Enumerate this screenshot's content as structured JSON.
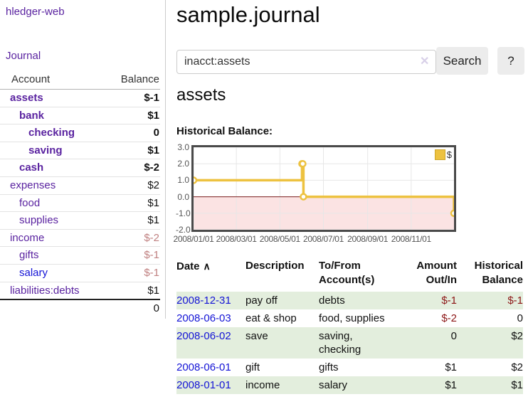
{
  "app": {
    "brand": "hledger-web",
    "nav_journal": "Journal"
  },
  "colors": {
    "link_purple": "#5a23a0",
    "link_blue": "#1414d6",
    "negative": "#8c1616",
    "negative_dim": "#c08181",
    "row_stripe_green": "#e3eedd",
    "button_gray": "#ececec",
    "chart_line_gold": "#EDC240",
    "chart_negative_region": "#fbe3e3",
    "chart_zero_line": "#7d1f1f",
    "chart_border": "#4a4a4a"
  },
  "sidebar": {
    "account_header": "Account",
    "balance_header": "Balance",
    "accounts": [
      {
        "name": "assets",
        "depth": 0,
        "balance": "$-1",
        "bold": true,
        "tone": "neg"
      },
      {
        "name": "bank",
        "depth": 1,
        "balance": "$1",
        "bold": true,
        "tone": "normal"
      },
      {
        "name": "checking",
        "depth": 2,
        "balance": "0",
        "bold": true,
        "tone": "normal"
      },
      {
        "name": "saving",
        "depth": 2,
        "balance": "$1",
        "bold": true,
        "tone": "normal"
      },
      {
        "name": "cash",
        "depth": 1,
        "balance": "$-2",
        "bold": true,
        "tone": "neg"
      },
      {
        "name": "expenses",
        "depth": 0,
        "balance": "$2",
        "bold": false,
        "tone": "normal"
      },
      {
        "name": "food",
        "depth": 1,
        "balance": "$1",
        "bold": false,
        "tone": "normal"
      },
      {
        "name": "supplies",
        "depth": 1,
        "balance": "$1",
        "bold": false,
        "tone": "normal"
      },
      {
        "name": "income",
        "depth": 0,
        "balance": "$-2",
        "bold": false,
        "tone": "negdim"
      },
      {
        "name": "gifts",
        "depth": 1,
        "balance": "$-1",
        "bold": false,
        "tone": "negdim"
      },
      {
        "name": "salary",
        "depth": 1,
        "balance": "$-1",
        "bold": false,
        "tone": "negdim",
        "link": "blue"
      },
      {
        "name": "liabilities:debts",
        "depth": 0,
        "balance": "$1",
        "bold": false,
        "tone": "normal"
      }
    ],
    "total": "0"
  },
  "header": {
    "title": "sample.journal"
  },
  "search": {
    "value": "inacct:assets",
    "clear_icon": "✕",
    "button": "Search",
    "help_button": "?"
  },
  "account_page": {
    "title": "assets",
    "chart_label": "Historical Balance:"
  },
  "chart_data": {
    "type": "line",
    "title": "Historical Balance:",
    "legend": {
      "label": "$",
      "position": "top-right"
    },
    "x_domain": [
      "2008-01-01",
      "2008-12-31"
    ],
    "ylim": [
      -2,
      3
    ],
    "yticks": [
      3,
      2,
      1,
      0,
      -1,
      -2
    ],
    "xticks": [
      "2008/01/01",
      "2008/03/01",
      "2008/05/01",
      "2008/07/01",
      "2008/09/01",
      "2008/11/01"
    ],
    "grid": true,
    "negative_region_color": "#fbe3e3",
    "zero_line_color": "#7d1f1f",
    "series": [
      {
        "name": "$",
        "color": "#EDC240",
        "step": true,
        "points": [
          [
            "2008-01-01",
            1
          ],
          [
            "2008-06-01",
            2
          ],
          [
            "2008-06-02",
            2
          ],
          [
            "2008-06-03",
            0
          ],
          [
            "2008-12-31",
            -1
          ]
        ]
      }
    ]
  },
  "register": {
    "columns": {
      "date": "Date",
      "sort_icon": "∧",
      "description": "Description",
      "tofrom": "To/From Account(s)",
      "amount": "Amount Out/In",
      "balance": "Historical Balance"
    },
    "rows": [
      {
        "date": "2008-12-31",
        "description": "pay off",
        "accounts": "debts",
        "amount": "$-1",
        "amount_tone": "neg",
        "balance": "$-1",
        "balance_tone": "neg"
      },
      {
        "date": "2008-06-03",
        "description": "eat & shop",
        "accounts": "food, supplies",
        "amount": "$-2",
        "amount_tone": "neg",
        "balance": "0",
        "balance_tone": "normal"
      },
      {
        "date": "2008-06-02",
        "description": "save",
        "accounts": "saving, checking",
        "amount": "0",
        "amount_tone": "normal",
        "balance": "$2",
        "balance_tone": "normal"
      },
      {
        "date": "2008-06-01",
        "description": "gift",
        "accounts": "gifts",
        "amount": "$1",
        "amount_tone": "normal",
        "balance": "$2",
        "balance_tone": "normal"
      },
      {
        "date": "2008-01-01",
        "description": "income",
        "accounts": "salary",
        "amount": "$1",
        "amount_tone": "normal",
        "balance": "$1",
        "balance_tone": "normal"
      }
    ]
  }
}
